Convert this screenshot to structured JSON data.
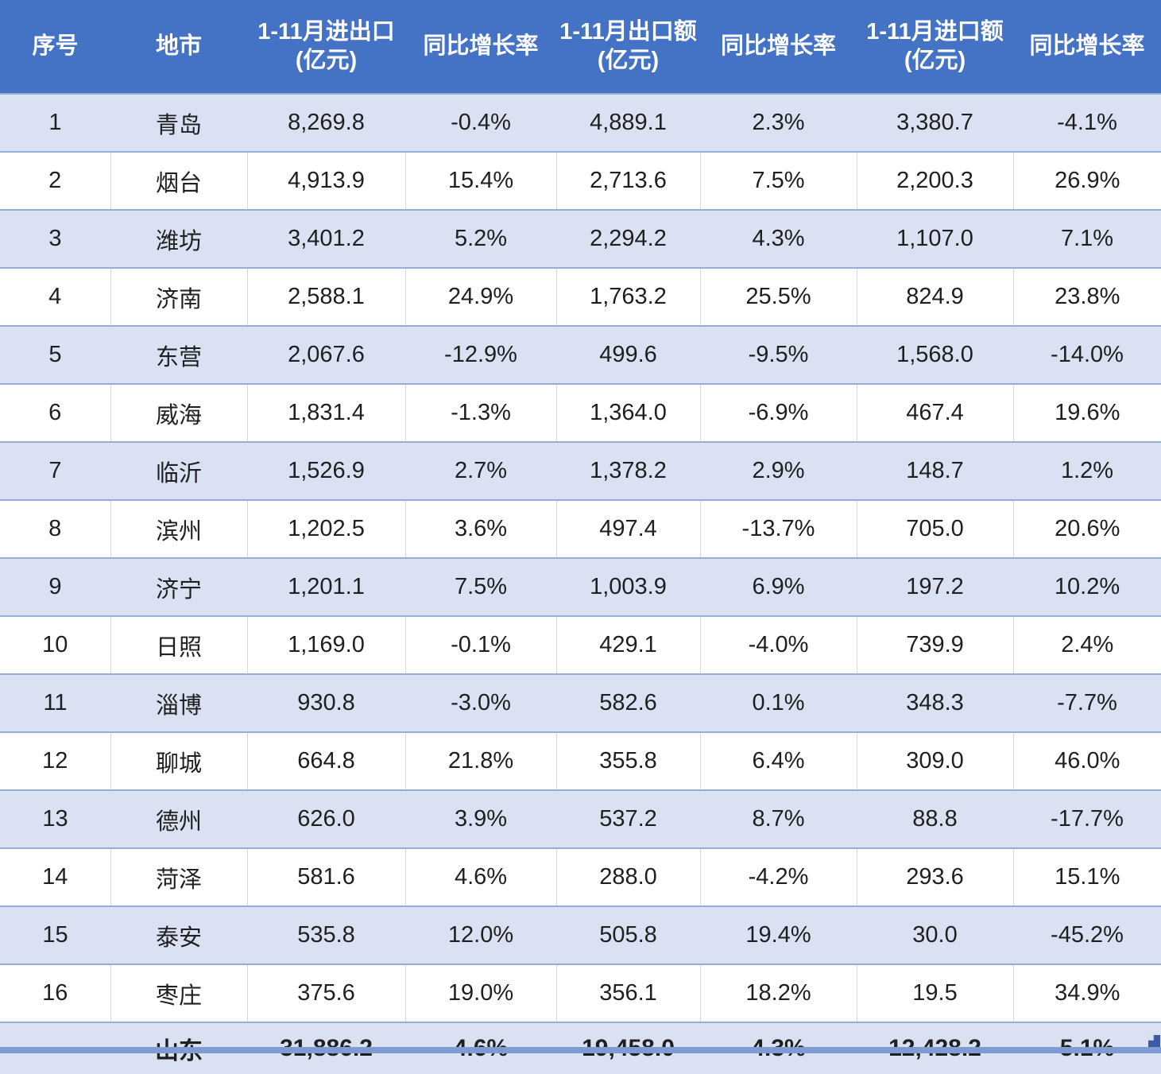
{
  "colors": {
    "header_bg": "#4472C4",
    "header_text": "#ffffff",
    "band_row_bg": "#D9E1F2",
    "plain_row_bg": "#ffffff",
    "band_border": "#95ADD8",
    "column_divider": "#D8D8D8",
    "bottom_bar": "#7E9CD3",
    "fill_handle": "#3A5BAC",
    "body_text": "#1f1f1f"
  },
  "chart_data": {
    "type": "table",
    "title": "",
    "legend": "none",
    "grid": "banded-rows",
    "columns": [
      {
        "key": "seq",
        "line1": "序号",
        "line2": ""
      },
      {
        "key": "city",
        "line1": "地市",
        "line2": ""
      },
      {
        "key": "total_trade",
        "line1": "1-11月进出口",
        "line2": "(亿元)"
      },
      {
        "key": "total_growth",
        "line1": "同比增长率",
        "line2": ""
      },
      {
        "key": "export_value",
        "line1": "1-11月出口额",
        "line2": "(亿元)"
      },
      {
        "key": "export_growth",
        "line1": "同比增长率",
        "line2": ""
      },
      {
        "key": "import_value",
        "line1": "1-11月进口额",
        "line2": "(亿元)"
      },
      {
        "key": "import_growth",
        "line1": "同比增长率",
        "line2": ""
      }
    ],
    "rows": [
      {
        "cells": [
          "1",
          "青岛",
          "8,269.8",
          "-0.4%",
          "4,889.1",
          "2.3%",
          "3,380.7",
          "-4.1%"
        ]
      },
      {
        "cells": [
          "2",
          "烟台",
          "4,913.9",
          "15.4%",
          "2,713.6",
          "7.5%",
          "2,200.3",
          "26.9%"
        ]
      },
      {
        "cells": [
          "3",
          "潍坊",
          "3,401.2",
          "5.2%",
          "2,294.2",
          "4.3%",
          "1,107.0",
          "7.1%"
        ]
      },
      {
        "cells": [
          "4",
          "济南",
          "2,588.1",
          "24.9%",
          "1,763.2",
          "25.5%",
          "824.9",
          "23.8%"
        ]
      },
      {
        "cells": [
          "5",
          "东营",
          "2,067.6",
          "-12.9%",
          "499.6",
          "-9.5%",
          "1,568.0",
          "-14.0%"
        ]
      },
      {
        "cells": [
          "6",
          "威海",
          "1,831.4",
          "-1.3%",
          "1,364.0",
          "-6.9%",
          "467.4",
          "19.6%"
        ]
      },
      {
        "cells": [
          "7",
          "临沂",
          "1,526.9",
          "2.7%",
          "1,378.2",
          "2.9%",
          "148.7",
          "1.2%"
        ]
      },
      {
        "cells": [
          "8",
          "滨州",
          "1,202.5",
          "3.6%",
          "497.4",
          "-13.7%",
          "705.0",
          "20.6%"
        ]
      },
      {
        "cells": [
          "9",
          "济宁",
          "1,201.1",
          "7.5%",
          "1,003.9",
          "6.9%",
          "197.2",
          "10.2%"
        ]
      },
      {
        "cells": [
          "10",
          "日照",
          "1,169.0",
          "-0.1%",
          "429.1",
          "-4.0%",
          "739.9",
          "2.4%"
        ]
      },
      {
        "cells": [
          "11",
          "淄博",
          "930.8",
          "-3.0%",
          "582.6",
          "0.1%",
          "348.3",
          "-7.7%"
        ]
      },
      {
        "cells": [
          "12",
          "聊城",
          "664.8",
          "21.8%",
          "355.8",
          "6.4%",
          "309.0",
          "46.0%"
        ]
      },
      {
        "cells": [
          "13",
          "德州",
          "626.0",
          "3.9%",
          "537.2",
          "8.7%",
          "88.8",
          "-17.7%"
        ]
      },
      {
        "cells": [
          "14",
          "菏泽",
          "581.6",
          "4.6%",
          "288.0",
          "-4.2%",
          "293.6",
          "15.1%"
        ]
      },
      {
        "cells": [
          "15",
          "泰安",
          "535.8",
          "12.0%",
          "505.8",
          "19.4%",
          "30.0",
          "-45.2%"
        ]
      },
      {
        "cells": [
          "16",
          "枣庄",
          "375.6",
          "19.0%",
          "356.1",
          "18.2%",
          "19.5",
          "34.9%"
        ]
      }
    ],
    "total": {
      "cells": [
        "",
        "山东",
        "31,886.2",
        "4.6%",
        "19,458.0",
        "4.3%",
        "12,428.2",
        "5.1%"
      ]
    }
  }
}
